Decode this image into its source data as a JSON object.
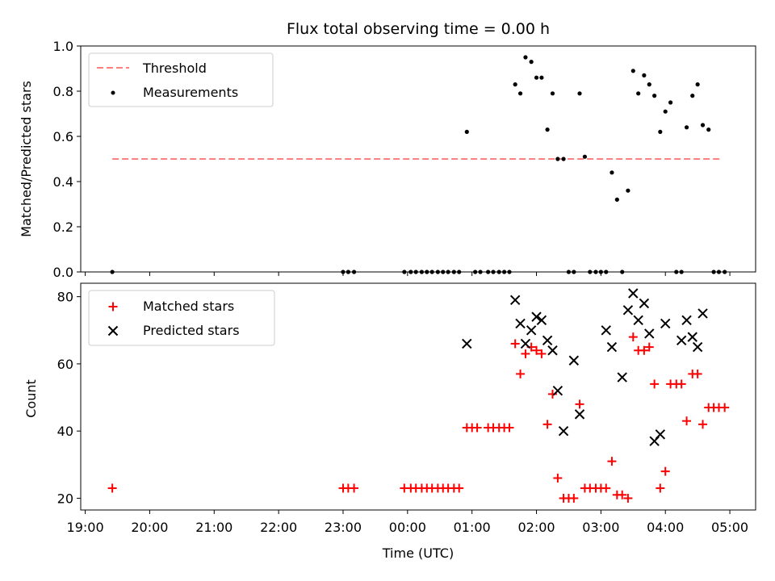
{
  "figure": {
    "title": "Flux total observing time = 0.00 h",
    "xlabel": "Time (UTC)",
    "x_tick_labels": [
      "19:00",
      "20:00",
      "21:00",
      "22:00",
      "23:00",
      "00:00",
      "01:00",
      "02:00",
      "03:00",
      "04:00",
      "05:00"
    ]
  },
  "colors": {
    "threshold": "#ff8080",
    "measurements": "#000000",
    "matched": "#ff0000",
    "predicted": "#000000"
  },
  "chart_data": [
    {
      "type": "scatter",
      "name": "ratio-panel",
      "ylabel": "Matched/Predicted stars",
      "xlim": [
        18.93,
        29.4
      ],
      "ylim": [
        0,
        1.0
      ],
      "y_ticks": [
        0.0,
        0.2,
        0.4,
        0.6,
        0.8,
        1.0
      ],
      "y_tick_labels": [
        "0.0",
        "0.2",
        "0.4",
        "0.6",
        "0.8",
        "1.0"
      ],
      "x_unit": "hours from 00:00 on first day (24+ = next day)",
      "legend_position": "upper-left",
      "legend": [
        "Threshold",
        "Measurements"
      ],
      "threshold": {
        "name": "Threshold",
        "value": 0.5,
        "x_range": [
          19.42,
          28.87
        ],
        "style": "dashed"
      },
      "measurements": {
        "name": "Measurements",
        "x": [
          19.42,
          23.0,
          23.08,
          23.17,
          23.95,
          24.05,
          24.13,
          24.22,
          24.3,
          24.38,
          24.47,
          24.55,
          24.63,
          24.72,
          24.8,
          24.92,
          25.05,
          25.13,
          25.25,
          25.33,
          25.42,
          25.5,
          25.58,
          25.67,
          25.75,
          25.83,
          25.92,
          26.0,
          26.08,
          26.17,
          26.25,
          26.33,
          26.42,
          26.5,
          26.58,
          26.67,
          26.75,
          26.83,
          26.92,
          27.0,
          27.08,
          27.17,
          27.25,
          27.33,
          27.42,
          27.5,
          27.58,
          27.67,
          27.75,
          27.83,
          27.92,
          28.0,
          28.08,
          28.17,
          28.25,
          28.33,
          28.42,
          28.5,
          28.58,
          28.67,
          28.75,
          28.83,
          28.92
        ],
        "y": [
          0.0,
          0.0,
          0.0,
          0.0,
          0.0,
          0.0,
          0.0,
          0.0,
          0.0,
          0.0,
          0.0,
          0.0,
          0.0,
          0.0,
          0.0,
          0.62,
          0.0,
          0.0,
          0.0,
          0.0,
          0.0,
          0.0,
          0.0,
          0.83,
          0.79,
          0.95,
          0.93,
          0.86,
          0.86,
          0.63,
          0.79,
          0.5,
          0.5,
          0.0,
          0.0,
          0.79,
          0.51,
          0.0,
          0.0,
          0.0,
          0.0,
          0.44,
          0.32,
          0.0,
          0.36,
          0.89,
          0.79,
          0.87,
          0.83,
          0.78,
          0.62,
          0.71,
          0.75,
          0.0,
          0.0,
          0.64,
          0.78,
          0.83,
          0.65,
          0.63,
          0.0,
          0.0,
          0.0
        ]
      }
    },
    {
      "type": "scatter",
      "name": "count-panel",
      "ylabel": "Count",
      "xlim": [
        18.93,
        29.4
      ],
      "ylim": [
        16.5,
        84.0
      ],
      "y_ticks": [
        20,
        40,
        60,
        80
      ],
      "y_tick_labels": [
        "20",
        "40",
        "60",
        "80"
      ],
      "legend_position": "upper-left",
      "legend": [
        "Matched stars",
        "Predicted stars"
      ],
      "series": [
        {
          "name": "Matched stars",
          "marker": "plus",
          "x": [
            19.42,
            23.0,
            23.08,
            23.17,
            23.95,
            24.05,
            24.13,
            24.22,
            24.3,
            24.38,
            24.47,
            24.55,
            24.63,
            24.72,
            24.8,
            24.92,
            25.0,
            25.08,
            25.25,
            25.33,
            25.42,
            25.5,
            25.58,
            25.67,
            25.75,
            25.83,
            25.92,
            26.0,
            26.08,
            26.17,
            26.25,
            26.33,
            26.42,
            26.5,
            26.58,
            26.67,
            26.75,
            26.83,
            26.92,
            27.0,
            27.08,
            27.17,
            27.25,
            27.33,
            27.42,
            27.5,
            27.58,
            27.67,
            27.75,
            27.83,
            27.92,
            28.0,
            28.08,
            28.17,
            28.25,
            28.33,
            28.42,
            28.5,
            28.58,
            28.67,
            28.75,
            28.83,
            28.92
          ],
          "y": [
            23,
            23,
            23,
            23,
            23,
            23,
            23,
            23,
            23,
            23,
            23,
            23,
            23,
            23,
            23,
            41,
            41,
            41,
            41,
            41,
            41,
            41,
            41,
            66,
            57,
            63,
            65,
            64,
            63,
            42,
            51,
            26,
            20,
            20,
            20,
            48,
            23,
            23,
            23,
            23,
            23,
            31,
            21,
            21,
            20,
            68,
            64,
            64,
            65,
            54,
            23,
            28,
            54,
            54,
            54,
            43,
            57,
            57,
            42,
            47,
            47,
            47,
            47
          ]
        },
        {
          "name": "Predicted stars",
          "marker": "x",
          "x": [
            24.92,
            25.67,
            25.75,
            25.83,
            25.92,
            26.0,
            26.08,
            26.17,
            26.25,
            26.33,
            26.42,
            26.58,
            26.67,
            27.08,
            27.17,
            27.33,
            27.42,
            27.5,
            27.58,
            27.67,
            27.75,
            27.83,
            27.92,
            28.0,
            28.25,
            28.33,
            28.42,
            28.5,
            28.58
          ],
          "y": [
            66,
            79,
            72,
            66,
            70,
            74,
            73,
            67,
            64,
            52,
            40,
            61,
            45,
            70,
            65,
            56,
            76,
            81,
            73,
            78,
            69,
            37,
            39,
            72,
            67,
            73,
            68,
            65,
            75
          ]
        }
      ]
    }
  ]
}
